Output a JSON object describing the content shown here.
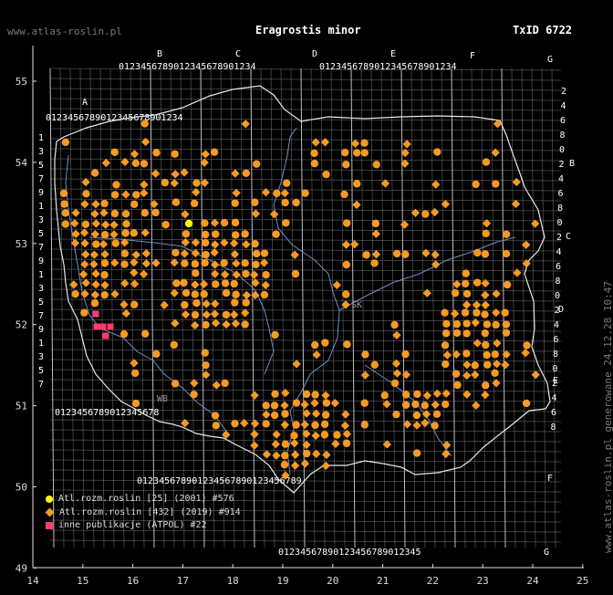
{
  "header": {
    "site": "www.atlas-roslin.pl",
    "species": "Eragrostis minor",
    "taxon_id": "TxID 6722"
  },
  "side_note": "www.atlas-roslin.pl generowane 24.12.28 10:47",
  "axes": {
    "x_ticks": [
      "14",
      "15",
      "16",
      "17",
      "18",
      "19",
      "20",
      "21",
      "22",
      "23",
      "24",
      "25"
    ],
    "y_ticks": [
      "55",
      "54",
      "53",
      "52",
      "51",
      "50",
      "49"
    ],
    "x_range": [
      14,
      25
    ],
    "y_range": [
      49,
      55.7
    ]
  },
  "grid_letters": {
    "top_columns": [
      "A",
      "B",
      "C",
      "D",
      "E",
      "F",
      "G"
    ],
    "right_rows": [
      "B",
      "C",
      "D",
      "E",
      "F",
      "G"
    ],
    "digit_row": "0123456789"
  },
  "legend": [
    {
      "label": "Atl.rozm.roslin [25] (2001) #576",
      "color": "#ffff00",
      "shape": "circle"
    },
    {
      "label": "Atl.rozm.roslin [432] (2019) #914",
      "color": "#f59a23",
      "shape": "diamond"
    },
    {
      "label": "inne publikacje (ATPOL) #22",
      "color": "#ff3d6e",
      "shape": "square"
    }
  ],
  "colors": {
    "orange": "#f59a23",
    "yellow": "#ffff00",
    "pink": "#ff3d6e",
    "grid": "#8a8a8a",
    "border": "#ffffff",
    "river": "#6f8fc8"
  },
  "region_labels": [
    "SK",
    "WB"
  ]
}
